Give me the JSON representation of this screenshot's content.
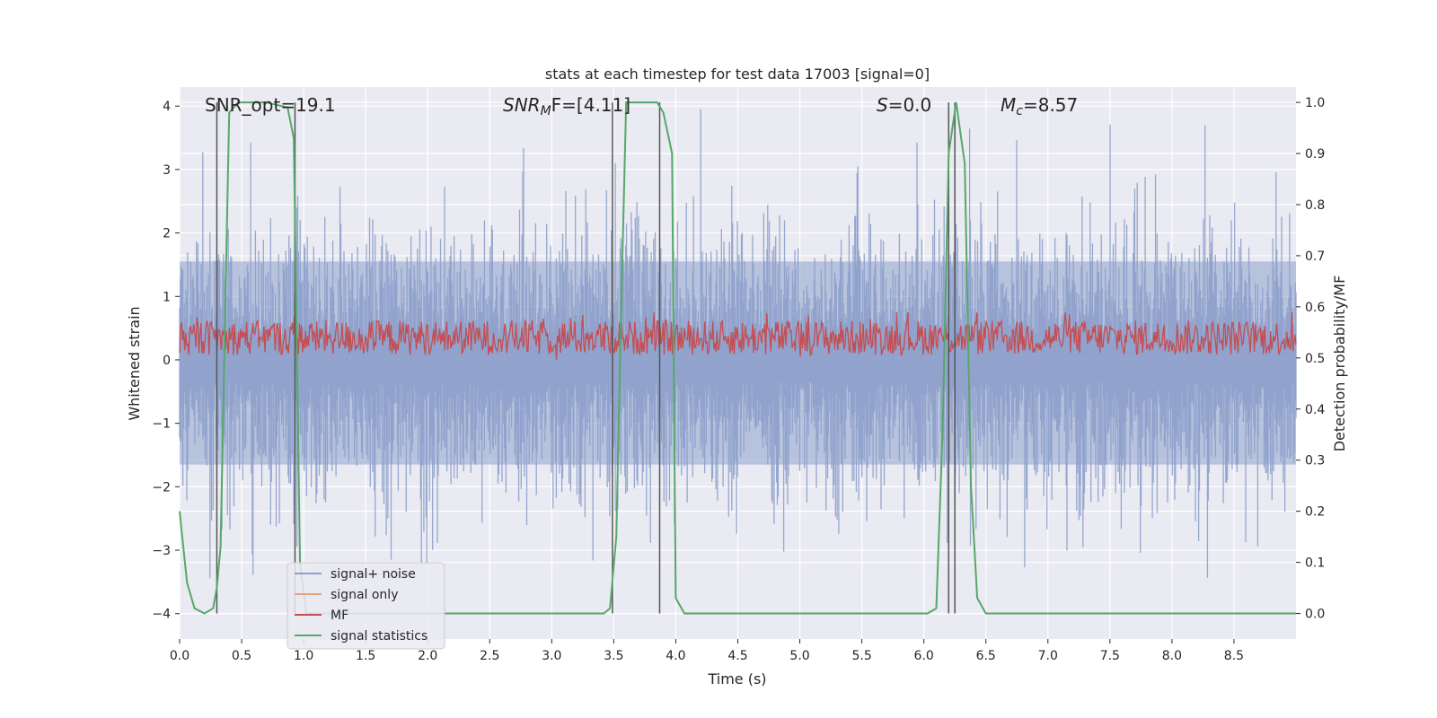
{
  "chart_data": {
    "type": "line",
    "title": "stats at each timestep for test data 17003 [signal=0]",
    "xlabel": "Time (s)",
    "ylabel": "Whitened strain",
    "ylabel_right": "Detection probability/MF",
    "xlim": [
      0.0,
      9.0
    ],
    "ylim": [
      -4.4,
      4.3
    ],
    "ylim_right": [
      -0.05,
      1.03
    ],
    "xticks": [
      0.0,
      0.5,
      1.0,
      1.5,
      2.0,
      2.5,
      3.0,
      3.5,
      4.0,
      4.5,
      5.0,
      5.5,
      6.0,
      6.5,
      7.0,
      7.5,
      8.0,
      8.5
    ],
    "xtick_labels": [
      "0.0",
      "0.5",
      "1.0",
      "1.5",
      "2.0",
      "2.5",
      "3.0",
      "3.5",
      "4.0",
      "4.5",
      "5.0",
      "5.5",
      "6.0",
      "6.5",
      "7.0",
      "7.5",
      "8.0",
      "8.5"
    ],
    "yticks": [
      4,
      3,
      2,
      1,
      0,
      -1,
      -2,
      -3,
      -4
    ],
    "ytick_labels": [
      "4",
      "3",
      "2",
      "1",
      "0",
      "−1",
      "−2",
      "−3",
      "−4"
    ],
    "yticks_right": [
      1.0,
      0.9,
      0.8,
      0.7,
      0.6,
      0.5,
      0.4,
      0.3,
      0.2,
      0.1,
      0.0
    ],
    "ytick_labels_right": [
      "1.0",
      "0.9",
      "0.8",
      "0.7",
      "0.6",
      "0.5",
      "0.4",
      "0.3",
      "0.2",
      "0.1",
      "0.0"
    ],
    "grid": true,
    "legend_position": "lower-left",
    "annotations": {
      "snr_opt": "SNR_opt=19.1",
      "snr_mf_sym": "SNR",
      "snr_mf_sub": "M",
      "snr_mf_rest": "F=[4.11]",
      "s_sym": "S",
      "s_rest": "=0.0",
      "mc_sym": "M",
      "mc_sub": "c",
      "mc_rest": "=8.57"
    },
    "series": [
      {
        "name": "signal+ noise",
        "color": "#8da0cb",
        "axis": "left",
        "noise_amplitude": 1.6,
        "spike_max": 3.95,
        "spike_min": -4.0
      },
      {
        "name": "signal only",
        "color": "#e8a07e",
        "axis": "left",
        "values": []
      },
      {
        "name": "MF",
        "color": "#c44e52",
        "axis": "left",
        "center": 0.35,
        "range": [
          0.0,
          0.75
        ]
      },
      {
        "name": "signal statistics",
        "color": "#55a868",
        "axis": "right",
        "x": [
          0.0,
          0.03,
          0.06,
          0.12,
          0.2,
          0.27,
          0.3,
          0.33,
          0.36,
          0.4,
          0.47,
          0.55,
          0.7,
          0.87,
          0.92,
          0.97,
          1.02,
          3.0,
          3.42,
          3.47,
          3.52,
          3.56,
          3.6,
          3.7,
          3.85,
          3.9,
          3.97,
          4.0,
          4.07,
          5.5,
          6.03,
          6.1,
          6.15,
          6.2,
          6.26,
          6.33,
          6.38,
          6.43,
          6.5,
          9.0
        ],
        "values": [
          0.2,
          0.13,
          0.06,
          0.01,
          0.0,
          0.01,
          0.05,
          0.13,
          0.5,
          0.98,
          1.0,
          1.0,
          1.0,
          0.99,
          0.93,
          0.1,
          0.0,
          0.0,
          0.0,
          0.01,
          0.15,
          0.6,
          1.0,
          1.0,
          1.0,
          0.98,
          0.9,
          0.03,
          0.0,
          0.0,
          0.0,
          0.01,
          0.35,
          0.9,
          1.0,
          0.88,
          0.25,
          0.03,
          0.0,
          0.0
        ]
      }
    ],
    "vertical_markers": [
      {
        "x": 0.3,
        "y_range": [
          0.0,
          1.0
        ]
      },
      {
        "x": 0.93,
        "y_range": [
          0.0,
          1.0
        ]
      },
      {
        "x": 3.49,
        "y_range": [
          0.0,
          1.0
        ]
      },
      {
        "x": 3.87,
        "y_range": [
          0.0,
          1.0
        ]
      },
      {
        "x": 6.2,
        "y_range": [
          0.0,
          1.0
        ]
      },
      {
        "x": 6.25,
        "y_range": [
          0.0,
          1.0
        ]
      }
    ]
  }
}
